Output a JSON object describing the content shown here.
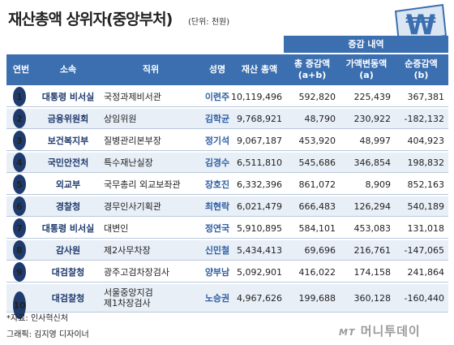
{
  "title": "재산총액 상위자(중앙부처)",
  "unit": "(단위: 천원)",
  "group_header": "증감 내역",
  "headers": {
    "no": "연번",
    "dept": "소속",
    "position": "직위",
    "name": "성명",
    "total": "재산 총액",
    "total_change": "총 증감액\n(a+b)",
    "price_change": "가액변동액\n(a)",
    "net_change": "순증감액\n(b)"
  },
  "rows": [
    {
      "no": "1",
      "dept": "대통령 비서실",
      "position": "국정과제비서관",
      "name": "이련주",
      "total": "10,119,496",
      "total_change": "592,820",
      "price_change": "225,439",
      "net_change": "367,381"
    },
    {
      "no": "2",
      "dept": "금융위원회",
      "position": "상임위원",
      "name": "김학균",
      "total": "9,768,921",
      "total_change": "48,790",
      "price_change": "230,922",
      "net_change": "-182,132"
    },
    {
      "no": "3",
      "dept": "보건복지부",
      "position": "질병관리본부장",
      "name": "정기석",
      "total": "9,067,187",
      "total_change": "453,920",
      "price_change": "48,997",
      "net_change": "404,923"
    },
    {
      "no": "4",
      "dept": "국민안전처",
      "position": "특수재난실장",
      "name": "김경수",
      "total": "6,511,810",
      "total_change": "545,686",
      "price_change": "346,854",
      "net_change": "198,832"
    },
    {
      "no": "5",
      "dept": "외교부",
      "position": "국무총리 외교보좌관",
      "name": "장호진",
      "total": "6,332,396",
      "total_change": "861,072",
      "price_change": "8,909",
      "net_change": "852,163"
    },
    {
      "no": "6",
      "dept": "경찰청",
      "position": "경무인사기획관",
      "name": "최현락",
      "total": "6,021,479",
      "total_change": "666,483",
      "price_change": "126,294",
      "net_change": "540,189"
    },
    {
      "no": "7",
      "dept": "대통령 비서실",
      "position": "대변인",
      "name": "정연국",
      "total": "5,910,895",
      "total_change": "584,101",
      "price_change": "453,083",
      "net_change": "131,018"
    },
    {
      "no": "8",
      "dept": "감사원",
      "position": "제2사무차장",
      "name": "신민철",
      "total": "5,434,413",
      "total_change": "69,696",
      "price_change": "216,761",
      "net_change": "-147,065"
    },
    {
      "no": "9",
      "dept": "대검찰청",
      "position": "광주고검차장검사",
      "name": "양부남",
      "total": "5,092,901",
      "total_change": "416,022",
      "price_change": "174,158",
      "net_change": "241,864"
    },
    {
      "no": "10",
      "dept": "대검찰청",
      "position": "서울중앙지검\n제1차장검사",
      "name": "노승권",
      "total": "4,967,626",
      "total_change": "199,688",
      "price_change": "360,128",
      "net_change": "-160,440"
    }
  ],
  "source": "*자료: 인사혁신처",
  "credit": "그래픽: 김지영 디자이너",
  "brand": {
    "mark": "MT",
    "name": "머니투데이"
  },
  "logo_glyph": "₩",
  "colors": {
    "header": "#3b6fb0",
    "accent": "#1f3b6e",
    "row_alt": "#e9eff7"
  }
}
